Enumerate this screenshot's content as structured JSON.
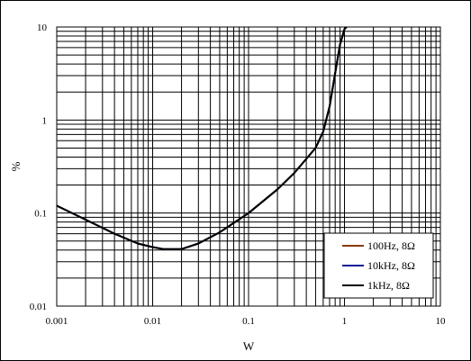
{
  "chart_data": {
    "type": "line",
    "title": "",
    "xlabel": "W",
    "ylabel": "%",
    "xscale": "log",
    "yscale": "log",
    "xlim": [
      0.001,
      10
    ],
    "ylim": [
      0.01,
      10
    ],
    "grid": true,
    "legend_position": "bottom-right",
    "x_tick_labels": [
      "0.001",
      "0.01",
      "0.1",
      "1",
      "10"
    ],
    "y_tick_labels": [
      "0.01",
      "0.1",
      "1",
      "10"
    ],
    "x_ticks": [
      0.001,
      0.01,
      0.1,
      1,
      10
    ],
    "y_ticks": [
      0.01,
      0.1,
      1,
      10
    ],
    "series": [
      {
        "name": "100Hz, 8Ω",
        "color": "#8b3a0f",
        "x": [
          0.001,
          0.002,
          0.004,
          0.007,
          0.01,
          0.013,
          0.02,
          0.03,
          0.05,
          0.1,
          0.2,
          0.3,
          0.5,
          0.6,
          0.7,
          0.8,
          0.9,
          1.0,
          1.05
        ],
        "y": [
          0.12,
          0.085,
          0.06,
          0.047,
          0.043,
          0.041,
          0.041,
          0.047,
          0.062,
          0.1,
          0.18,
          0.27,
          0.5,
          0.75,
          1.4,
          3.2,
          6.5,
          9.5,
          10
        ]
      },
      {
        "name": "10kHz, 8Ω",
        "color": "#0a1a96",
        "x": [
          0.001,
          0.002,
          0.004,
          0.007,
          0.01,
          0.013,
          0.02,
          0.03,
          0.05,
          0.1,
          0.2,
          0.3,
          0.5,
          0.6,
          0.7,
          0.8,
          0.9,
          1.0,
          1.05
        ],
        "y": [
          0.12,
          0.085,
          0.06,
          0.047,
          0.043,
          0.041,
          0.041,
          0.047,
          0.062,
          0.1,
          0.18,
          0.27,
          0.5,
          0.75,
          1.4,
          3.2,
          6.5,
          9.5,
          10
        ]
      },
      {
        "name": "1kHz, 8Ω",
        "color": "#000000",
        "x": [
          0.001,
          0.002,
          0.004,
          0.007,
          0.01,
          0.013,
          0.02,
          0.03,
          0.05,
          0.1,
          0.2,
          0.3,
          0.5,
          0.6,
          0.7,
          0.8,
          0.9,
          1.0,
          1.05
        ],
        "y": [
          0.12,
          0.085,
          0.06,
          0.047,
          0.043,
          0.041,
          0.041,
          0.047,
          0.062,
          0.1,
          0.18,
          0.27,
          0.5,
          0.75,
          1.4,
          3.2,
          6.5,
          9.5,
          10
        ]
      }
    ]
  }
}
